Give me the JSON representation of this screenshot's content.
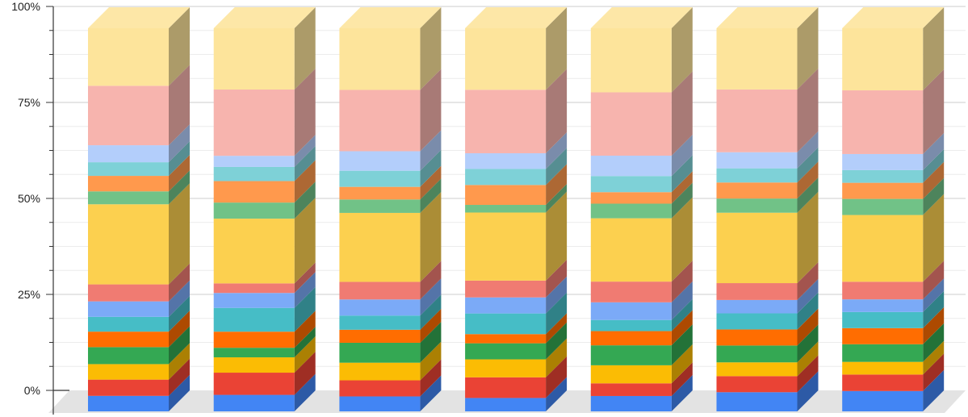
{
  "chart_data": {
    "type": "bar",
    "stacked": true,
    "percent_stacked": true,
    "three_d": true,
    "title": "",
    "xlabel": "",
    "ylabel": "",
    "ylim": [
      0,
      100
    ],
    "y_ticks": [
      "0%",
      "25%",
      "50%",
      "75%",
      "100%"
    ],
    "y_tick_values": [
      0,
      25,
      50,
      75,
      100
    ],
    "grid": true,
    "legend": "none",
    "categories": [
      "",
      "",
      "",
      "",
      "",
      "",
      ""
    ],
    "series": [
      {
        "color": "#4285f4",
        "values": [
          4.2,
          4.3,
          3.9,
          3.5,
          4.0,
          5.0,
          5.3
        ]
      },
      {
        "color": "#ea4335",
        "values": [
          4.4,
          5.8,
          4.2,
          5.4,
          3.3,
          4.2,
          4.3
        ]
      },
      {
        "color": "#fbbc04",
        "values": [
          4.2,
          4.0,
          4.6,
          4.7,
          4.7,
          3.6,
          3.3
        ]
      },
      {
        "color": "#34a853",
        "values": [
          4.6,
          2.5,
          5.2,
          4.2,
          5.2,
          4.4,
          4.6
        ]
      },
      {
        "color": "#ff6d01",
        "values": [
          4.2,
          4.2,
          3.4,
          2.4,
          3.7,
          4.2,
          4.2
        ]
      },
      {
        "color": "#46bdc6",
        "values": [
          4.0,
          6.2,
          3.7,
          5.4,
          2.9,
          4.2,
          4.2
        ]
      },
      {
        "color": "#7baaf7",
        "values": [
          4.2,
          3.9,
          4.2,
          4.2,
          4.6,
          3.5,
          3.3
        ]
      },
      {
        "color": "#f07b72",
        "values": [
          4.6,
          2.5,
          4.6,
          4.4,
          5.4,
          4.4,
          4.6
        ]
      },
      {
        "color": "#fcd04f",
        "values": [
          21.7,
          16.9,
          18.0,
          17.8,
          16.5,
          18.4,
          17.4
        ]
      },
      {
        "color": "#71c287",
        "values": [
          3.5,
          4.2,
          3.5,
          2.0,
          3.8,
          3.7,
          4.2
        ]
      },
      {
        "color": "#ff994d",
        "values": [
          4.2,
          5.6,
          3.3,
          5.2,
          3.0,
          4.2,
          4.2
        ]
      },
      {
        "color": "#7ed1d7",
        "values": [
          3.7,
          3.7,
          4.2,
          4.2,
          4.2,
          3.7,
          3.3
        ]
      },
      {
        "color": "#b3cefb",
        "values": [
          4.6,
          2.9,
          5.1,
          4.1,
          5.3,
          4.2,
          4.2
        ]
      },
      {
        "color": "#f7b4ae",
        "values": [
          16.1,
          17.3,
          16.0,
          16.6,
          16.5,
          16.4,
          16.6
        ]
      },
      {
        "color": "#fde49b",
        "values": [
          15.6,
          16.0,
          16.1,
          16.1,
          16.7,
          16.0,
          16.2
        ]
      }
    ]
  }
}
